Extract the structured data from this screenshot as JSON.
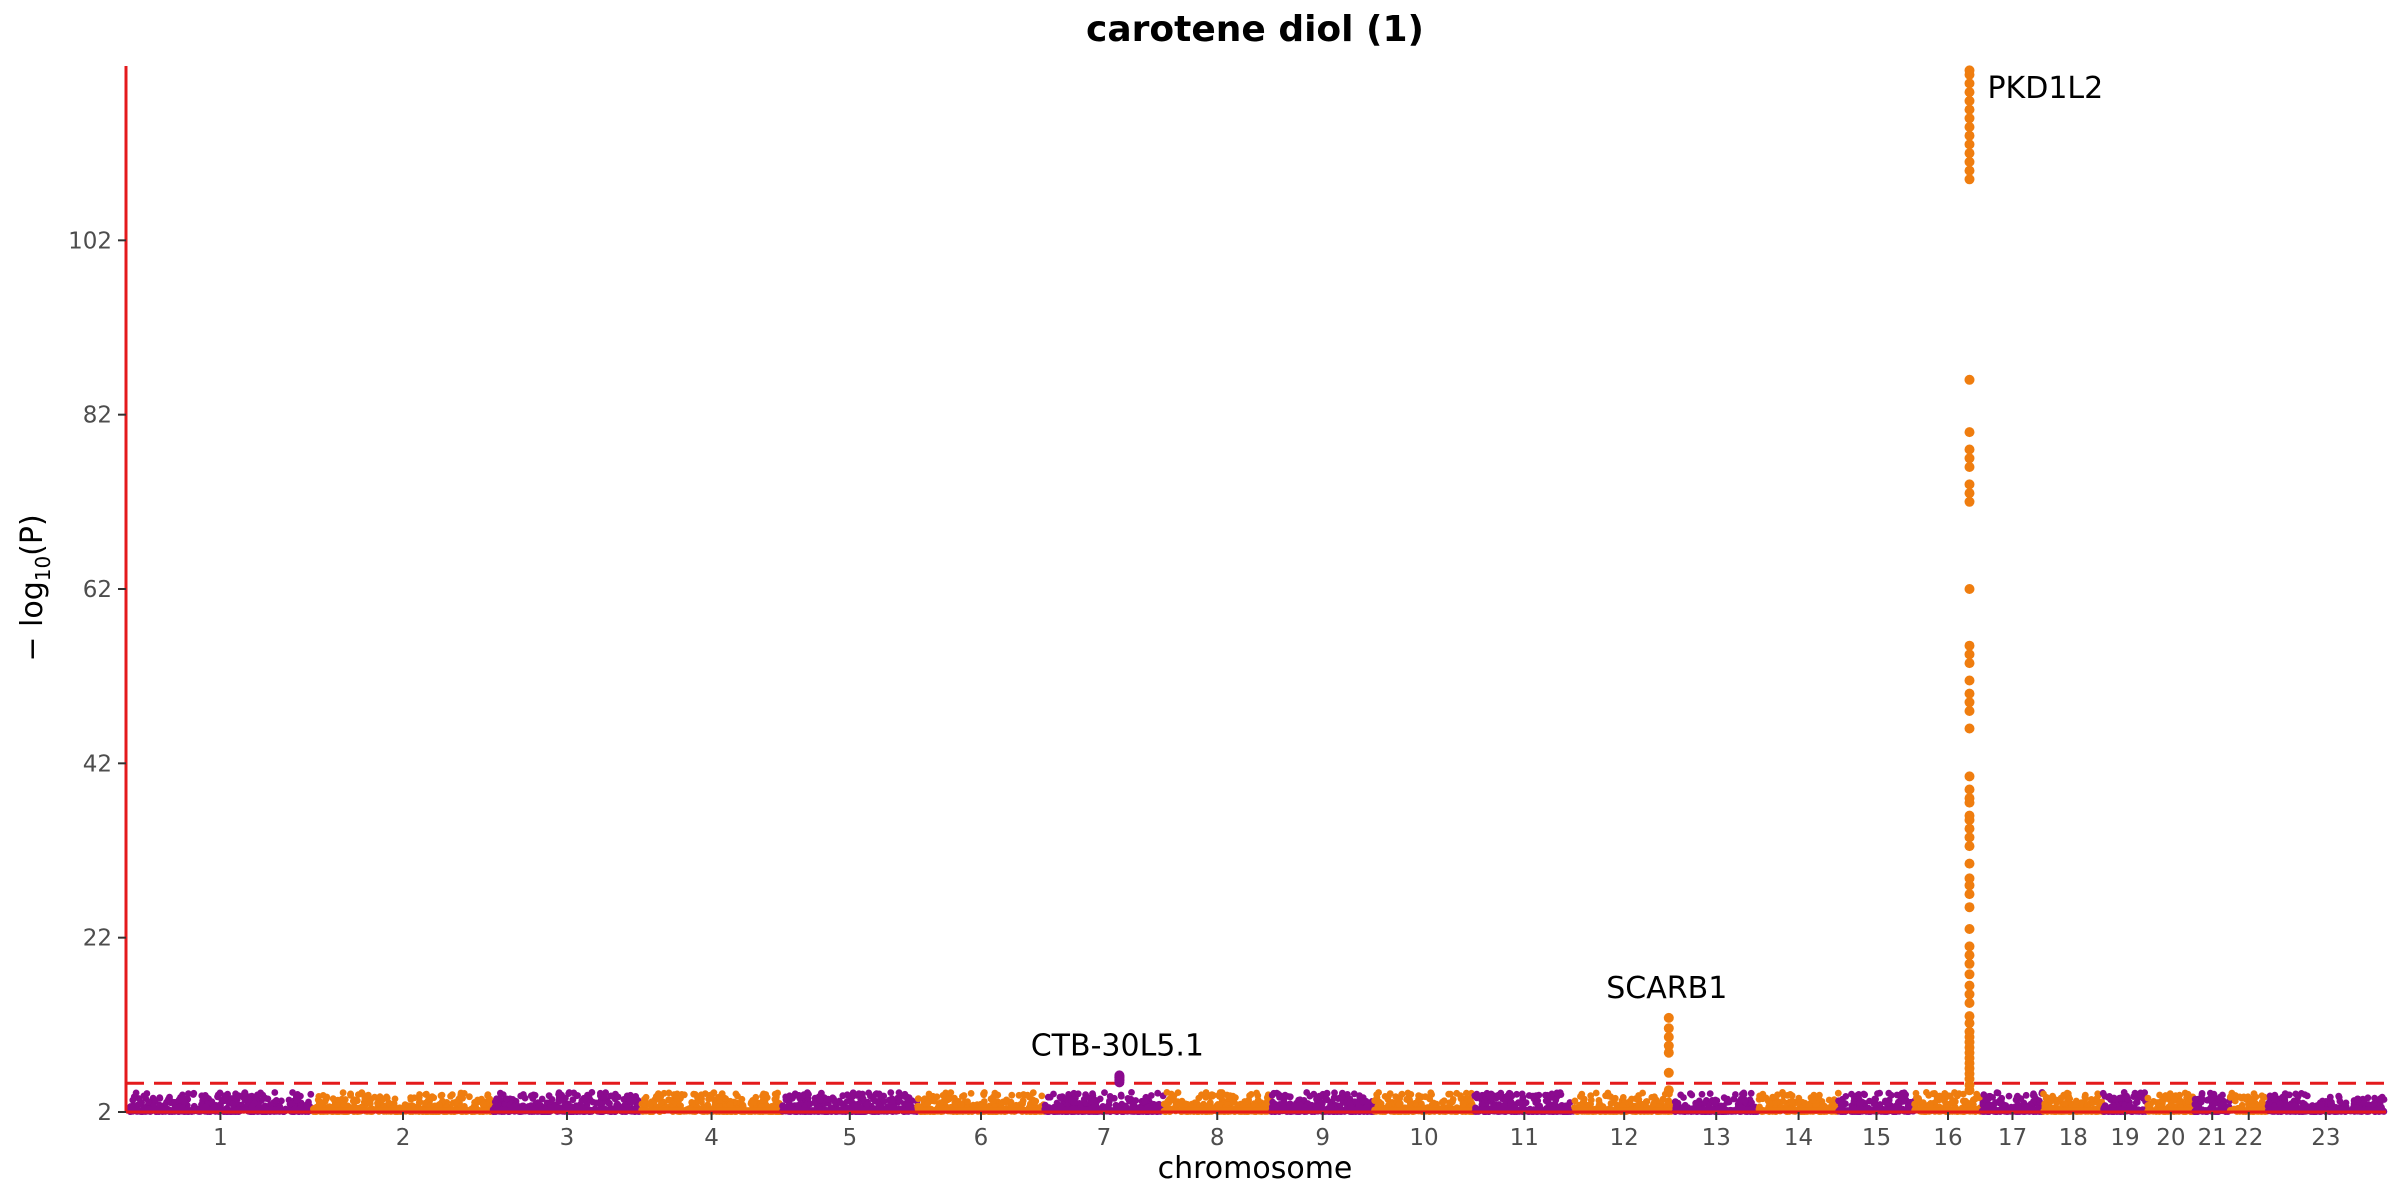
{
  "chart_data": {
    "type": "scatter",
    "title": "carotene diol (1)",
    "xlabel": "chromosome",
    "ylabel_parts": {
      "prefix": "− log",
      "subscript": "10",
      "suffix": "(P)"
    },
    "ylim": [
      2,
      122
    ],
    "yticks": [
      2,
      22,
      42,
      62,
      82,
      102
    ],
    "significance_threshold": 5.3,
    "threshold_color": "#e41a1c",
    "axis_color": "#e41a1c",
    "colors": {
      "odd": "#8b0a8f",
      "even": "#ef7d0f"
    },
    "chromosomes": [
      {
        "label": "1",
        "rel_length": 248
      },
      {
        "label": "2",
        "rel_length": 242
      },
      {
        "label": "3",
        "rel_length": 198
      },
      {
        "label": "4",
        "rel_length": 190
      },
      {
        "label": "5",
        "rel_length": 181
      },
      {
        "label": "6",
        "rel_length": 171
      },
      {
        "label": "7",
        "rel_length": 159
      },
      {
        "label": "8",
        "rel_length": 145
      },
      {
        "label": "9",
        "rel_length": 138
      },
      {
        "label": "10",
        "rel_length": 134
      },
      {
        "label": "11",
        "rel_length": 135
      },
      {
        "label": "12",
        "rel_length": 133
      },
      {
        "label": "13",
        "rel_length": 114
      },
      {
        "label": "14",
        "rel_length": 107
      },
      {
        "label": "15",
        "rel_length": 102
      },
      {
        "label": "16",
        "rel_length": 90
      },
      {
        "label": "17",
        "rel_length": 83
      },
      {
        "label": "18",
        "rel_length": 80
      },
      {
        "label": "19",
        "rel_length": 59
      },
      {
        "label": "20",
        "rel_length": 64
      },
      {
        "label": "21",
        "rel_length": 47
      },
      {
        "label": "22",
        "rel_length": 51
      },
      {
        "label": "23",
        "rel_length": 156
      }
    ],
    "peaks": [
      {
        "chr": "7",
        "pos_fraction": 0.63,
        "values": [
          5.4,
          5.6,
          5.8,
          6.0,
          6.1,
          6.2,
          6.0,
          5.7
        ]
      },
      {
        "chr": "12",
        "pos_fraction": 0.95,
        "values": [
          4.5,
          6.5,
          8.8,
          9.6,
          10.6,
          11.6,
          12.8
        ]
      },
      {
        "chr": "16",
        "pos_fraction": 0.82,
        "values": [
          4.5,
          5.1,
          5.8,
          6.4,
          7.0,
          7.6,
          8.2,
          8.8,
          9.4,
          10.0,
          10.6,
          11.2,
          12.2,
          13.0,
          14.5,
          15.5,
          16.5,
          17.8,
          19.0,
          20.0,
          21.0,
          23.0,
          25.5,
          27.0,
          28.0,
          28.8,
          30.5,
          32.5,
          33.5,
          34.5,
          35.5,
          36.0,
          37.5,
          38.0,
          39.0,
          40.5,
          46.0,
          48.0,
          49.0,
          50.0,
          51.5,
          53.5,
          54.5,
          55.5,
          62.0,
          72.0,
          73.0,
          74.0,
          76.0,
          77.0,
          78.0,
          80.0,
          86.0,
          109.0,
          110.0,
          111.0,
          112.0,
          113.0,
          114.0,
          115.0,
          116.0,
          117.0,
          118.0,
          119.0,
          120.0,
          121.0,
          121.5
        ]
      }
    ],
    "annotations": [
      {
        "text": "CTB-30L5.1",
        "chr": "7",
        "pos_fraction": 0.63,
        "y": 6.2
      },
      {
        "text": "SCARB1",
        "chr": "12",
        "pos_fraction": 0.95,
        "y": 12.8
      },
      {
        "text": "PKD1L2",
        "chr": "16",
        "pos_fraction": 0.82,
        "y": 119.5
      }
    ]
  }
}
